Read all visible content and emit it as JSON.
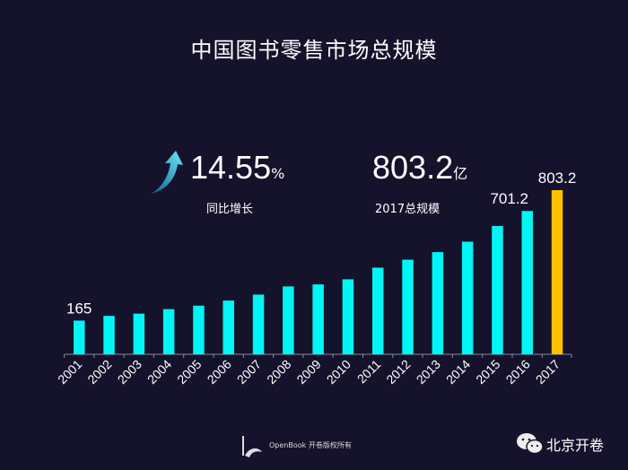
{
  "title": "中国图书零售市场总规模",
  "growth": {
    "value": "14.55",
    "unit": "%",
    "label": "同比增长"
  },
  "total": {
    "value": "803.2",
    "unit": "亿",
    "label": "2017总规模"
  },
  "footer": {
    "copyright": "OpenBook 开卷版权所有",
    "brand": "北京开卷"
  },
  "colors": {
    "bar": "#00f5f5",
    "highlight": "#ffc000",
    "background": "#15122b"
  },
  "chart_data": {
    "type": "bar",
    "title": "中国图书零售市场总规模",
    "xlabel": "",
    "ylabel": "",
    "categories": [
      "2001",
      "2002",
      "2003",
      "2004",
      "2005",
      "2006",
      "2007",
      "2008",
      "2009",
      "2010",
      "2011",
      "2012",
      "2013",
      "2014",
      "2015",
      "2016",
      "2017"
    ],
    "values": [
      165,
      188,
      199,
      221,
      238,
      263,
      292,
      332,
      342,
      367,
      424,
      463,
      500,
      551,
      628,
      701.2,
      803.2
    ],
    "data_labels": {
      "0": "165",
      "15": "701.2",
      "16": "803.2"
    },
    "highlight_index": 16,
    "ylim": [
      0,
      803.2
    ],
    "grid": false
  }
}
